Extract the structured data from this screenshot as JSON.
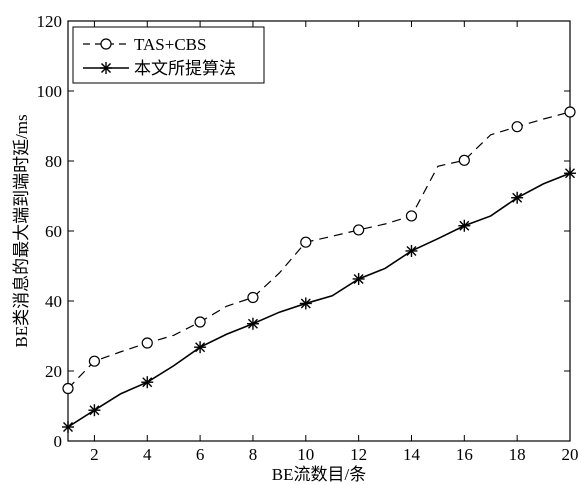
{
  "chart_data": {
    "type": "line",
    "xlabel": "BE流数目/条",
    "ylabel": "BE类消息的最大端到端时延/ms",
    "xlim": [
      1,
      20
    ],
    "ylim": [
      0,
      120
    ],
    "xticks": [
      2,
      4,
      6,
      8,
      10,
      12,
      14,
      16,
      18,
      20
    ],
    "yticks": [
      0,
      20,
      40,
      60,
      80,
      100,
      120
    ],
    "legend_position": "top-left",
    "series": [
      {
        "name": "TAS+CBS",
        "line_style": "dashed",
        "marker": "circle",
        "color": "#000000",
        "x": [
          1,
          2,
          3,
          4,
          5,
          6,
          7,
          8,
          9,
          10,
          11,
          12,
          13,
          14,
          15,
          16,
          17,
          18,
          19,
          20
        ],
        "values": [
          15,
          22.8,
          25.5,
          28,
          30.2,
          34,
          38.5,
          41,
          48,
          56.8,
          58.5,
          60.3,
          62,
          64.3,
          78.5,
          80.2,
          87.5,
          89.8,
          92,
          94
        ],
        "marked_x": [
          1,
          2,
          4,
          6,
          8,
          10,
          12,
          14,
          16,
          18,
          20
        ]
      },
      {
        "name": "本文所提算法",
        "line_style": "solid",
        "marker": "star",
        "color": "#000000",
        "x": [
          1,
          2,
          3,
          4,
          5,
          6,
          7,
          8,
          9,
          10,
          11,
          12,
          13,
          14,
          15,
          16,
          17,
          18,
          19,
          20
        ],
        "values": [
          4,
          8.8,
          13.5,
          16.8,
          21.5,
          26.8,
          30.5,
          33.5,
          36.8,
          39.3,
          41.5,
          46.3,
          49.3,
          54.3,
          57.8,
          61.5,
          64.3,
          69.5,
          73.5,
          76.5
        ],
        "marked_x": [
          1,
          2,
          4,
          6,
          8,
          10,
          12,
          14,
          16,
          18,
          20
        ]
      }
    ]
  }
}
